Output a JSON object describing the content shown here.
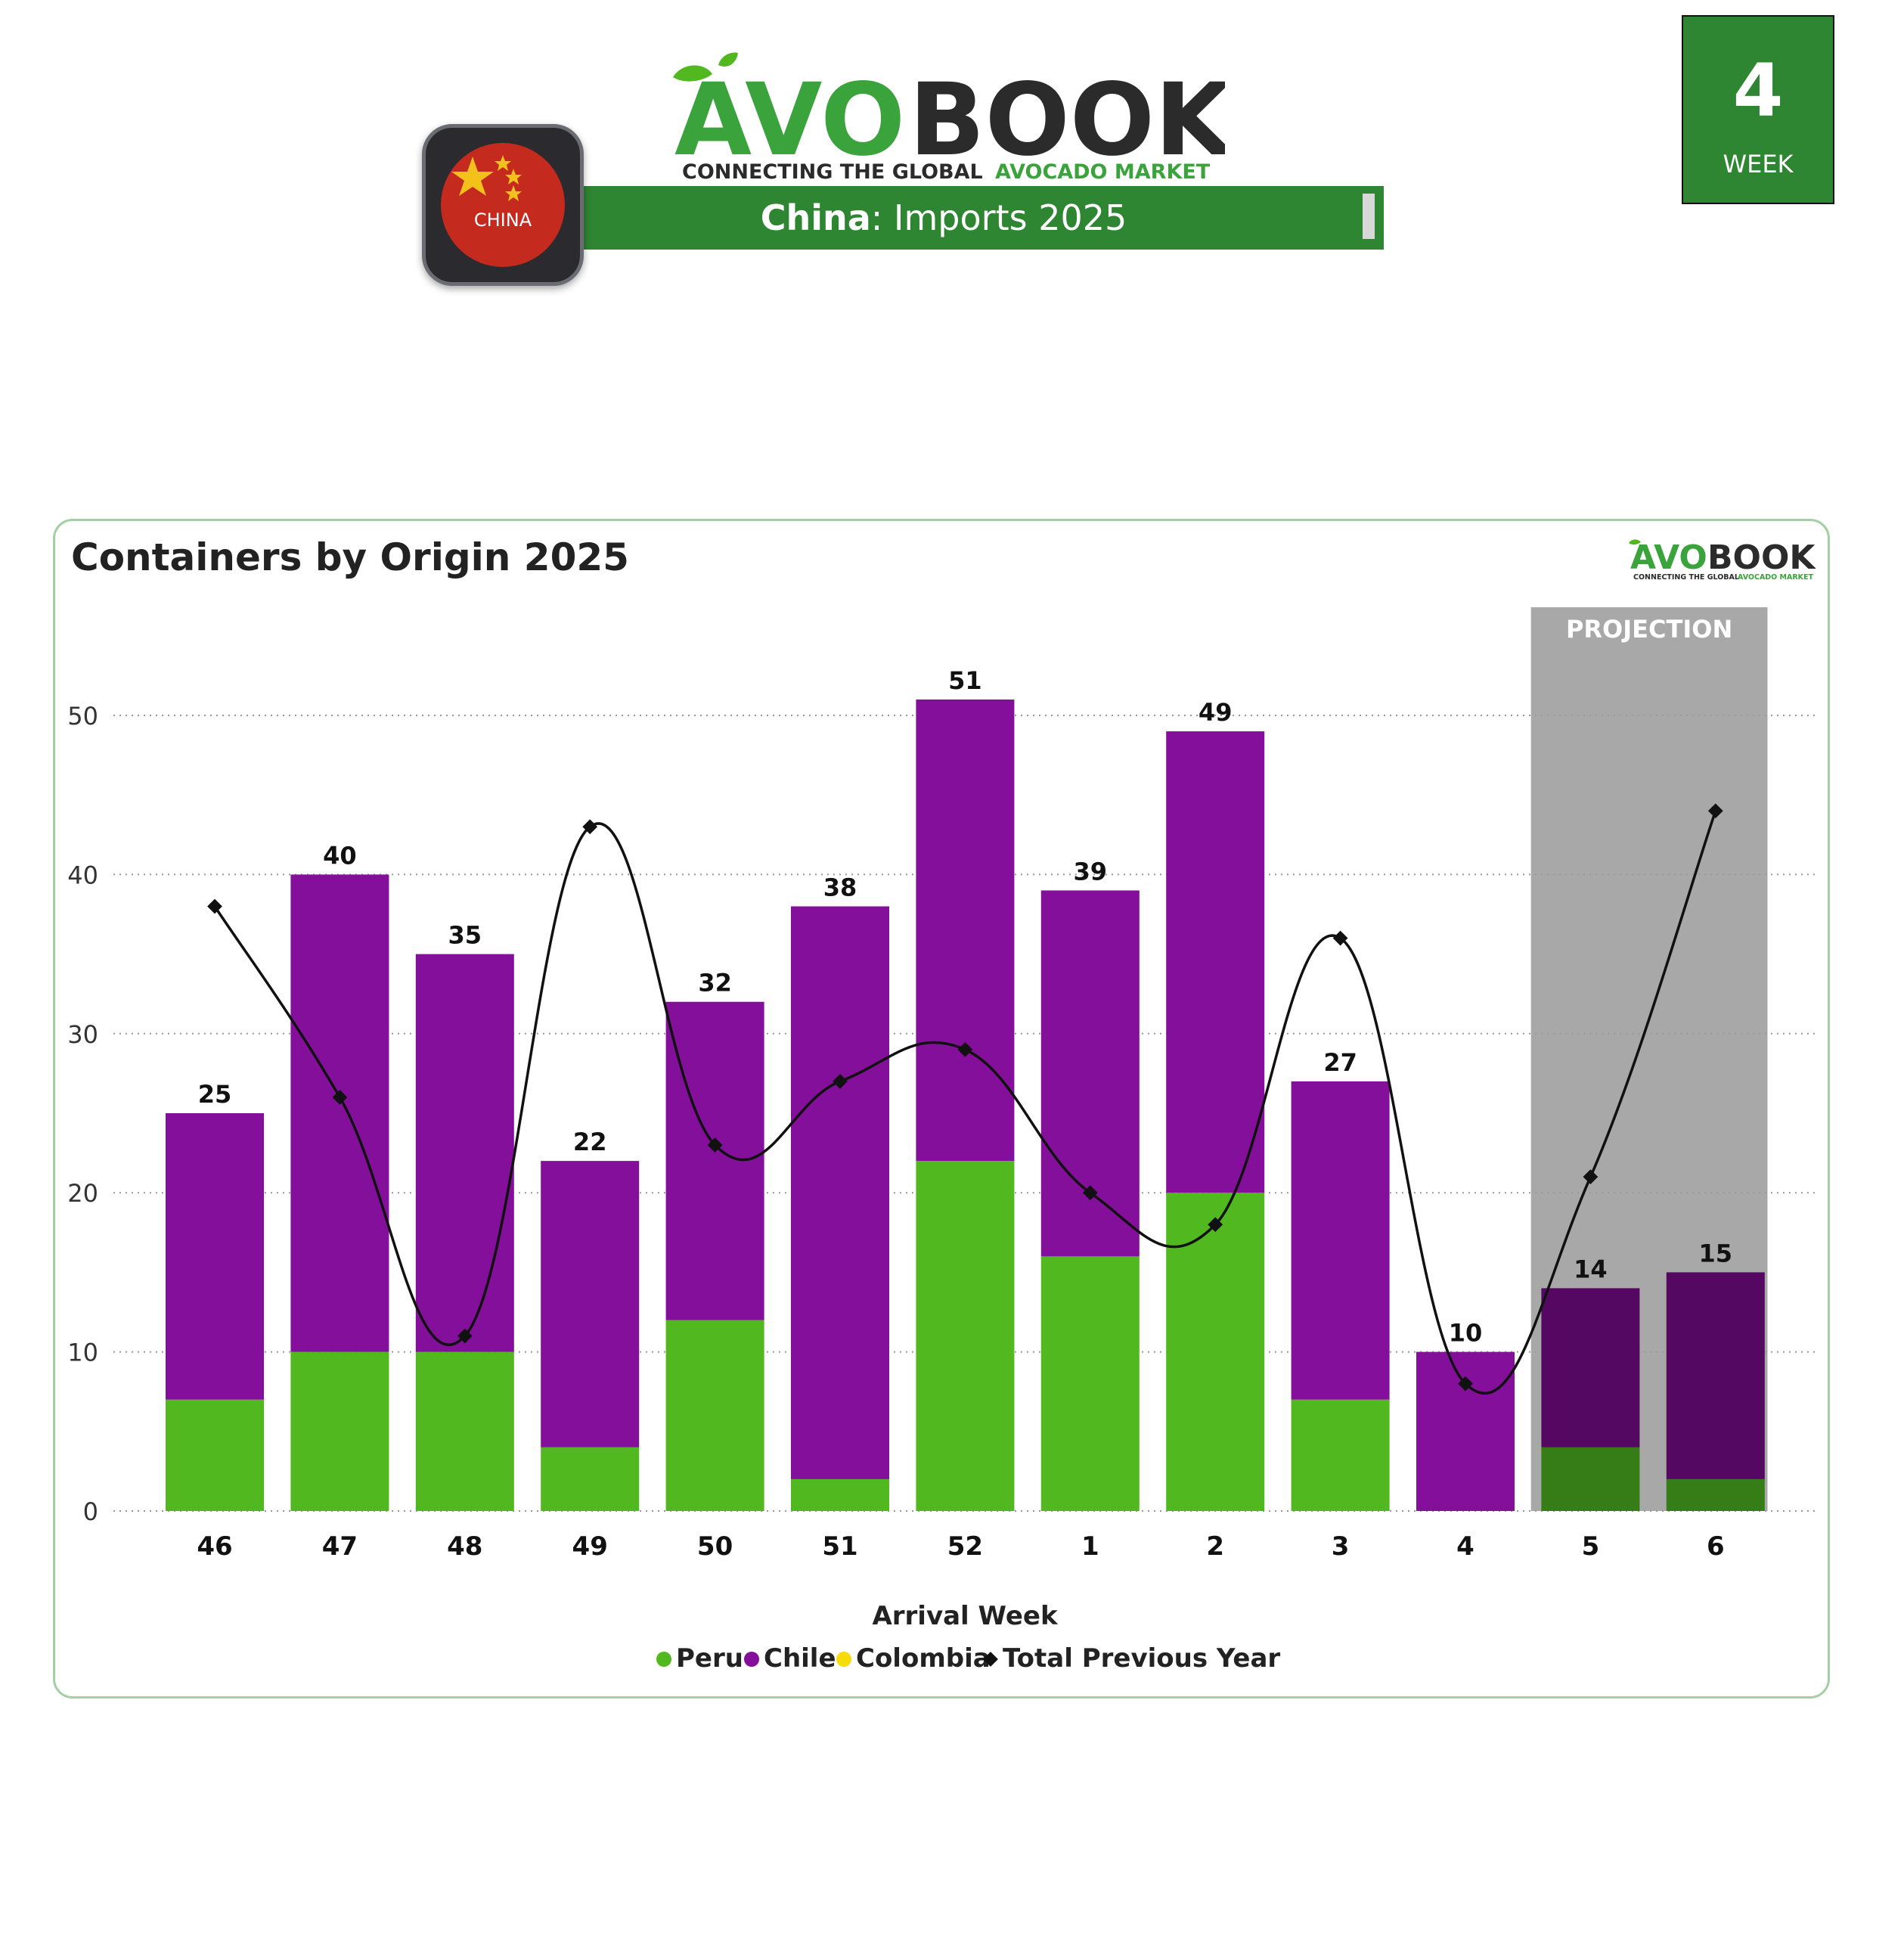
{
  "header": {
    "brand_name_green": "AVO",
    "brand_name_dark": "BOOK",
    "tagline_dark": "CONNECTING THE GLOBAL",
    "tagline_green": "AVOCADO MARKET",
    "flag_label": "CHINA",
    "title_country": "China",
    "title_rest": ": Imports 2025",
    "week_number": "4",
    "week_label": "WEEK"
  },
  "colors": {
    "brand_green": "#2e8532",
    "peru": "#52b81f",
    "chile": "#840f9b",
    "colombia": "#f5dc0a",
    "total_prev_year": "#111111",
    "projection_band": "#a8a8a8"
  },
  "icons": [
    "china-flag-icon",
    "avocado-leaf-icon"
  ],
  "chart_data": {
    "type": "bar",
    "stacked": true,
    "title": "Containers by Origin 2025",
    "xlabel": "Arrival Week",
    "ylabel": "",
    "ylim": [
      0,
      55
    ],
    "yticks": [
      0,
      10,
      20,
      30,
      40,
      50
    ],
    "grid": "horizontal dotted",
    "legend_position": "bottom-center",
    "projection_label": "PROJECTION",
    "projection_categories": [
      "5",
      "6"
    ],
    "categories": [
      "46",
      "47",
      "48",
      "49",
      "50",
      "51",
      "52",
      "1",
      "2",
      "3",
      "4",
      "5",
      "6"
    ],
    "totals": [
      25,
      40,
      35,
      22,
      32,
      38,
      51,
      39,
      49,
      27,
      10,
      14,
      15
    ],
    "series": [
      {
        "name": "Peru",
        "type": "bar",
        "values": [
          7,
          10,
          10,
          4,
          12,
          2,
          22,
          16,
          20,
          7,
          0,
          4,
          2
        ]
      },
      {
        "name": "Chile",
        "type": "bar",
        "values": [
          18,
          30,
          25,
          18,
          20,
          36,
          29,
          23,
          29,
          20,
          10,
          10,
          13
        ]
      },
      {
        "name": "Colombia",
        "type": "bar",
        "values": [
          0,
          0,
          0,
          0,
          0,
          0,
          0,
          0,
          0,
          0,
          0,
          0,
          0
        ]
      },
      {
        "name": "Total Previous Year",
        "type": "line",
        "values": [
          38,
          26,
          11,
          43,
          23,
          27,
          29,
          20,
          18,
          36,
          8,
          21,
          44
        ]
      }
    ]
  }
}
